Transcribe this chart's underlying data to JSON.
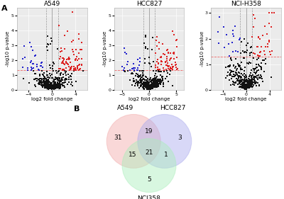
{
  "panel_A_label": "A",
  "panel_B_label": "B",
  "volcano_plots": [
    {
      "title": "A549",
      "xlim": [
        -6,
        6
      ],
      "ylim": [
        0,
        5.5
      ],
      "xticks": [
        -4,
        0,
        4
      ],
      "yticks": [
        0,
        1,
        2,
        3,
        4,
        5
      ],
      "xlabel": "log2 fold change",
      "ylabel": "-log10 p-value",
      "hline_y": 1.3,
      "threshold_fc": 1.0,
      "threshold_pval": 1.3
    },
    {
      "title": "HCC827",
      "xlim": [
        -6.5,
        6.5
      ],
      "ylim": [
        0,
        5.5
      ],
      "xticks": [
        -5,
        0,
        5
      ],
      "yticks": [
        0,
        1,
        2,
        3,
        4,
        5
      ],
      "xlabel": "log2 fold change",
      "ylabel": "-log10 p-value",
      "hline_y": 1.3,
      "threshold_fc": 1.0,
      "threshold_pval": 1.3
    },
    {
      "title": "NCI-H358",
      "xlim": [
        -6,
        6
      ],
      "ylim": [
        0,
        3.2
      ],
      "xticks": [
        -4,
        0,
        4
      ],
      "yticks": [
        0,
        1,
        2,
        3
      ],
      "xlabel": "log2 fold change",
      "ylabel": "-log10 p-value",
      "hline_y": 1.3,
      "threshold_fc": 1.0,
      "threshold_pval": 1.3
    }
  ],
  "venn": {
    "labels": [
      "A549",
      "HCC827",
      "NCI358"
    ],
    "counts": {
      "A549_only": 31,
      "HCC827_only": 3,
      "NCI358_only": 5,
      "A549_HCC827": 19,
      "A549_NCI358": 15,
      "HCC827_NCI358": 1,
      "all_three": 21
    },
    "colors": [
      "#f2aaaa",
      "#aaaaee",
      "#aaeebb"
    ],
    "edge_colors": [
      "#cc8888",
      "#8888cc",
      "#88cc88"
    ],
    "alpha": 0.45
  },
  "bg_color": "#ebebeb",
  "dot_size": 3,
  "colors": {
    "black": "#111111",
    "red": "#dd2222",
    "blue": "#2222cc"
  }
}
